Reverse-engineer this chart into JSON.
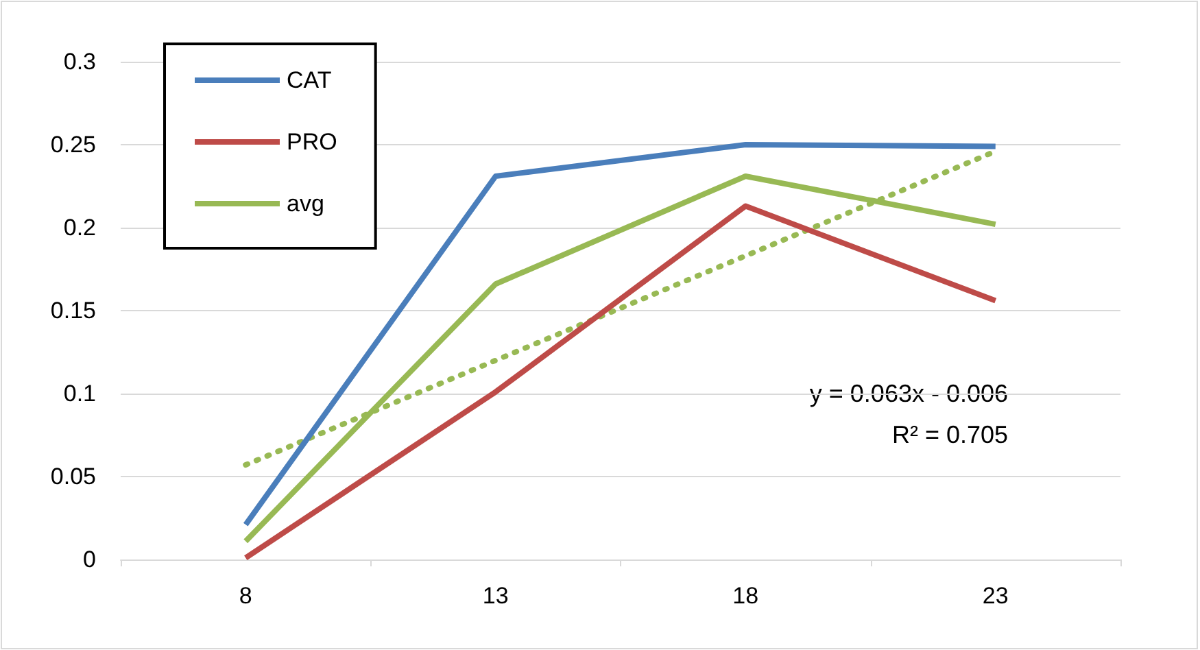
{
  "chart_data": {
    "type": "line",
    "categories": [
      "8",
      "13",
      "18",
      "23"
    ],
    "series": [
      {
        "name": "CAT",
        "color": "#4a7ebb",
        "values": [
          0.021,
          0.231,
          0.25,
          0.249
        ]
      },
      {
        "name": "PRO",
        "color": "#be4b48",
        "values": [
          0.001,
          0.101,
          0.213,
          0.156
        ]
      },
      {
        "name": "avg",
        "color": "#98b954",
        "values": [
          0.011,
          0.166,
          0.231,
          0.202
        ]
      },
      {
        "type": "line",
        "color": "#98b954",
        "line_style": "dotted",
        "x": [
          "8",
          "13",
          "18",
          "23"
        ],
        "values": [
          0.057,
          0.12,
          0.183,
          0.246
        ]
      }
    ],
    "ylim": [
      0,
      0.3
    ],
    "yticks": [
      0,
      0.05,
      0.1,
      0.15,
      0.2,
      0.25,
      0.3
    ],
    "annotations": [
      "y = 0.063x - 0.006",
      "R² = 0.705"
    ],
    "grid": "y",
    "legend": "top left",
    "marker": "none",
    "line_style": "solid"
  }
}
